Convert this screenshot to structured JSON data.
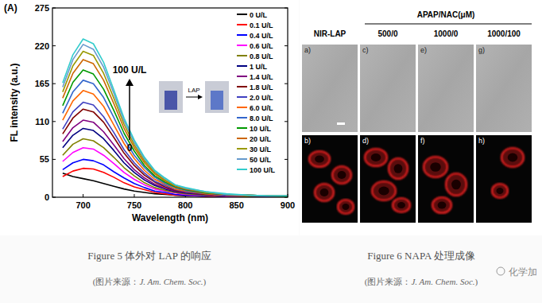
{
  "chart_data": {
    "type": "line",
    "title": "(A)",
    "x_label": "Wavelength (nm)",
    "y_label": "FL intensity (a.u.)",
    "x": [
      680,
      690,
      700,
      710,
      720,
      730,
      740,
      750,
      760,
      770,
      780,
      790,
      800,
      820,
      840,
      860,
      880,
      900
    ],
    "xlim": [
      670,
      900
    ],
    "xticks": [
      700,
      750,
      800,
      850,
      900
    ],
    "ylim": [
      0,
      275
    ],
    "yticks": [
      0,
      55,
      110,
      165,
      220,
      275
    ],
    "legend": "upper right",
    "grid": false,
    "annotations": [
      "100 U/L",
      "0",
      "LAP"
    ],
    "series": [
      {
        "name": "0 U/L",
        "color": "#000000",
        "values": [
          35,
          30,
          27,
          24,
          20,
          16,
          12,
          9,
          7,
          5,
          4,
          3,
          2,
          2,
          1,
          1,
          1,
          1
        ]
      },
      {
        "name": "0.1 U/L",
        "color": "#ff0000",
        "values": [
          30,
          38,
          42,
          41,
          36,
          29,
          21,
          15,
          11,
          7,
          5,
          3,
          3,
          1,
          1,
          1,
          0,
          0
        ]
      },
      {
        "name": "0.4 U/L",
        "color": "#0000ff",
        "values": [
          40,
          50,
          55,
          53,
          47,
          37,
          28,
          20,
          14,
          9,
          7,
          4,
          3,
          2,
          1,
          1,
          1,
          0
        ]
      },
      {
        "name": "0.6 U/L",
        "color": "#ff00ff",
        "values": [
          52,
          65,
          72,
          70,
          61,
          49,
          36,
          26,
          18,
          12,
          9,
          6,
          4,
          3,
          1,
          1,
          1,
          1
        ]
      },
      {
        "name": "0.8 U/L",
        "color": "#808000",
        "values": [
          61,
          77,
          85,
          82,
          72,
          58,
          43,
          31,
          21,
          14,
          10,
          7,
          5,
          3,
          2,
          1,
          1,
          1
        ]
      },
      {
        "name": "1 U/L",
        "color": "#000080",
        "values": [
          72,
          90,
          100,
          97,
          85,
          68,
          50,
          36,
          25,
          17,
          12,
          8,
          6,
          4,
          2,
          2,
          1,
          1
        ]
      },
      {
        "name": "1.4 U/L",
        "color": "#800080",
        "values": [
          81,
          101,
          112,
          109,
          95,
          76,
          56,
          40,
          28,
          19,
          13,
          9,
          7,
          4,
          2,
          2,
          1,
          1
        ]
      },
      {
        "name": "1.8 U/L",
        "color": "#800000",
        "values": [
          92,
          115,
          128,
          124,
          109,
          87,
          64,
          46,
          32,
          22,
          15,
          10,
          8,
          4,
          3,
          2,
          1,
          1
        ]
      },
      {
        "name": "2.0 U/L",
        "color": "#4040c0",
        "values": [
          99,
          124,
          138,
          134,
          117,
          94,
          69,
          50,
          35,
          23,
          17,
          11,
          8,
          5,
          3,
          2,
          1,
          1
        ]
      },
      {
        "name": "6.0 U/L",
        "color": "#ff6600",
        "values": [
          112,
          140,
          155,
          150,
          132,
          105,
          78,
          56,
          39,
          26,
          19,
          12,
          9,
          5,
          3,
          2,
          2,
          1
        ]
      },
      {
        "name": "8.0 U/L",
        "color": "#3366cc",
        "values": [
          122,
          153,
          170,
          165,
          145,
          116,
          85,
          61,
          43,
          29,
          20,
          14,
          10,
          6,
          3,
          3,
          2,
          1
        ]
      },
      {
        "name": "10 U/L",
        "color": "#009900",
        "values": [
          133,
          167,
          185,
          179,
          157,
          126,
          93,
          67,
          46,
          31,
          22,
          15,
          11,
          6,
          4,
          3,
          2,
          1
        ]
      },
      {
        "name": "20 U/L",
        "color": "#cc6600",
        "values": [
          144,
          180,
          200,
          194,
          170,
          136,
          100,
          72,
          50,
          34,
          24,
          16,
          12,
          7,
          4,
          3,
          2,
          2
        ]
      },
      {
        "name": "30 U/L",
        "color": "#999900",
        "values": [
          153,
          191,
          212,
          206,
          180,
          144,
          106,
          76,
          53,
          36,
          25,
          17,
          13,
          7,
          4,
          3,
          2,
          2
        ]
      },
      {
        "name": "50 U/L",
        "color": "#6699cc",
        "values": [
          160,
          200,
          222,
          215,
          189,
          151,
          111,
          80,
          56,
          38,
          27,
          18,
          13,
          8,
          4,
          3,
          2,
          2
        ]
      },
      {
        "name": "100 U/L",
        "color": "#33cccc",
        "values": [
          166,
          207,
          230,
          223,
          196,
          156,
          115,
          83,
          58,
          39,
          28,
          18,
          14,
          8,
          5,
          3,
          2,
          2
        ]
      }
    ]
  },
  "figure6": {
    "column_header": "NIR-LAP",
    "group_header": "APAP/NAC(μM)",
    "group_columns": [
      "500/0",
      "1000/0",
      "1000/100"
    ],
    "panel_labels": [
      "a)",
      "b)",
      "c)",
      "d)",
      "e)",
      "f)",
      "g)",
      "h)"
    ]
  },
  "captions": [
    {
      "figure": "Figure 5",
      "text": "体外对 LAP 的响应",
      "source_prefix": "(图片来源：",
      "journal": "J. Am. Chem. Soc.",
      "source_suffix": ")"
    },
    {
      "figure": "Figure 6",
      "text": "NAPA 处理成像",
      "source_prefix": "(图片来源：",
      "journal": "J. Am. Chem. Soc.",
      "source_suffix": ")"
    }
  ],
  "watermark": "化学加"
}
